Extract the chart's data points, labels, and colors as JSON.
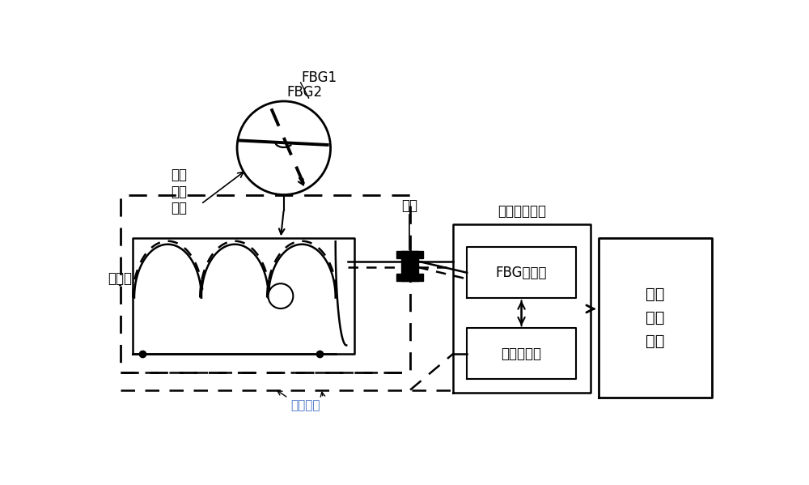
{
  "bg_color": "#ffffff",
  "text_color": "#000000",
  "label_fbg1": "FBG1",
  "label_fbg2": "FBG2",
  "label_dewar": "杜瓦罐",
  "label_hts_line1": "高温",
  "label_hts_line2": "超导",
  "label_hts_line3": "磁体",
  "label_flange": "法兰",
  "label_daq": "数据采集模块",
  "label_fbg_demod": "FBG解调佺",
  "label_voltage_col": "电压采集器",
  "label_data_proc_line1": "数据",
  "label_data_proc_line2": "处理",
  "label_data_proc_line3": "模块",
  "label_voltage_probe": "电压探头"
}
